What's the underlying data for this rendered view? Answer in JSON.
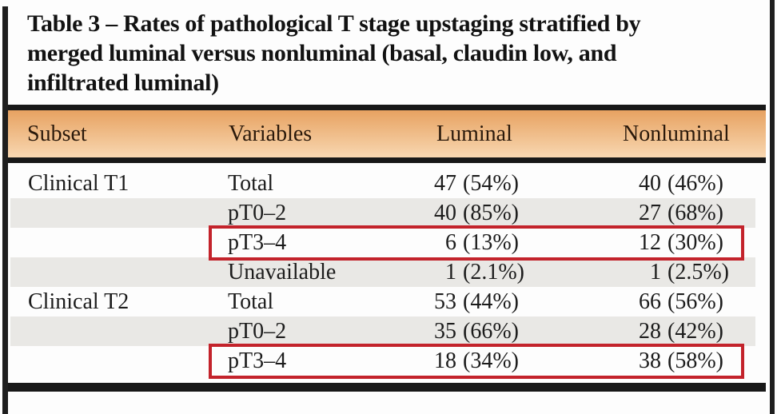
{
  "title": "Table 3 – Rates of pathological T stage upstaging stratified by merged luminal versus nonluminal (basal, claudin low, and infiltrated luminal)",
  "title_lines": [
    "Table 3 – Rates of pathological T stage upstaging stratified by",
    "merged luminal versus nonluminal (basal, claudin low, and",
    "infiltrated luminal)"
  ],
  "table": {
    "columns": [
      "Subset",
      "Variables",
      "Luminal",
      "Nonluminal"
    ],
    "rows": [
      {
        "subset": "Clinical T1",
        "variable": "Total",
        "luminal": {
          "n": "47",
          "pct": "(54%)"
        },
        "nonluminal": {
          "n": "40",
          "pct": "(46%)"
        },
        "shaded": false,
        "highlighted": false
      },
      {
        "subset": "",
        "variable": "pT0–2",
        "luminal": {
          "n": "40",
          "pct": "(85%)"
        },
        "nonluminal": {
          "n": "27",
          "pct": "(68%)"
        },
        "shaded": true,
        "highlighted": false
      },
      {
        "subset": "",
        "variable": "pT3–4",
        "luminal": {
          "n": "6",
          "pct": "(13%)"
        },
        "nonluminal": {
          "n": "12",
          "pct": "(30%)"
        },
        "shaded": false,
        "highlighted": true
      },
      {
        "subset": "",
        "variable": "Unavailable",
        "luminal": {
          "n": "1",
          "pct": "(2.1%)"
        },
        "nonluminal": {
          "n": "1",
          "pct": "(2.5%)"
        },
        "shaded": true,
        "highlighted": false
      },
      {
        "subset": "Clinical T2",
        "variable": "Total",
        "luminal": {
          "n": "53",
          "pct": "(44%)"
        },
        "nonluminal": {
          "n": "66",
          "pct": "(56%)"
        },
        "shaded": false,
        "highlighted": false
      },
      {
        "subset": "",
        "variable": "pT0–2",
        "luminal": {
          "n": "35",
          "pct": "(66%)"
        },
        "nonluminal": {
          "n": "28",
          "pct": "(42%)"
        },
        "shaded": true,
        "highlighted": false
      },
      {
        "subset": "",
        "variable": "pT3–4",
        "luminal": {
          "n": "18",
          "pct": "(34%)"
        },
        "nonluminal": {
          "n": "38",
          "pct": "(58%)"
        },
        "shaded": false,
        "highlighted": true
      }
    ]
  },
  "colors": {
    "header_gradient_top": "#e7a261",
    "header_gradient_bottom": "#f8d7b1",
    "stripe_gray": "#e9e8e5",
    "highlight_red": "#c3232b",
    "rule_black": "#181818",
    "text": "#1c1c1c"
  }
}
